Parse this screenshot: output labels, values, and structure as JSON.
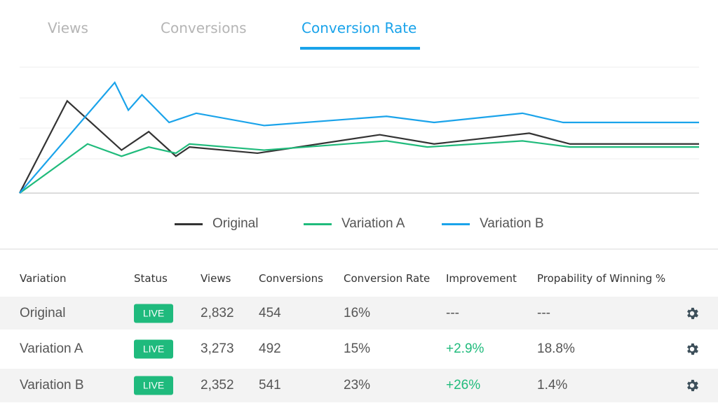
{
  "tabs": [
    {
      "label": "Views",
      "active": false
    },
    {
      "label": "Conversions",
      "active": false
    },
    {
      "label": "Conversion Rate",
      "active": true
    }
  ],
  "colors": {
    "accent": "#1aa3ea",
    "original": "#333333",
    "variation_a": "#20bb7c",
    "variation_b": "#1aa3ea",
    "live": "#1fba7d"
  },
  "chart_data": {
    "type": "line",
    "title": "",
    "xlabel": "",
    "ylabel": "",
    "xlim": [
      0,
      100
    ],
    "ylim": [
      0,
      41
    ],
    "grid": true,
    "legend_placement": "bottom",
    "series": [
      {
        "name": "Original",
        "color": "#333333",
        "x": [
          0,
          7,
          15,
          19,
          23,
          25,
          35,
          53,
          61,
          75,
          81,
          100
        ],
        "y": [
          0,
          30,
          14,
          20,
          12,
          15,
          13,
          19,
          16,
          19.5,
          16,
          16
        ]
      },
      {
        "name": "Variation A",
        "color": "#20bb7c",
        "x": [
          0,
          10,
          15,
          19,
          23,
          25,
          36,
          54,
          60,
          74,
          81,
          100
        ],
        "y": [
          0,
          16,
          12,
          15,
          13,
          16,
          14,
          17,
          15,
          17,
          15,
          15
        ]
      },
      {
        "name": "Variation B",
        "color": "#1aa3ea",
        "x": [
          0,
          14,
          16,
          18,
          22,
          26,
          36,
          54,
          61,
          74,
          80,
          100
        ],
        "y": [
          0,
          36,
          27,
          32,
          23,
          26,
          22,
          25,
          23,
          26,
          23,
          23
        ]
      }
    ]
  },
  "table": {
    "headers": [
      "Variation",
      "Status",
      "Views",
      "Conversions",
      "Conversion Rate",
      "Improvement",
      "Propability of Winning %"
    ],
    "rows": [
      {
        "variation": "Original",
        "status": "LIVE",
        "views": "2,832",
        "conversions": "454",
        "rate": "16%",
        "improvement": "---",
        "probability": "---",
        "improvement_positive": false
      },
      {
        "variation": "Variation A",
        "status": "LIVE",
        "views": "3,273",
        "conversions": "492",
        "rate": "15%",
        "improvement": "+2.9%",
        "probability": "18.8%",
        "improvement_positive": true
      },
      {
        "variation": "Variation B",
        "status": "LIVE",
        "views": "2,352",
        "conversions": "541",
        "rate": "23%",
        "improvement": "+26%",
        "probability": "1.4%",
        "improvement_positive": true
      }
    ],
    "row_action_icon": "gear-icon"
  }
}
